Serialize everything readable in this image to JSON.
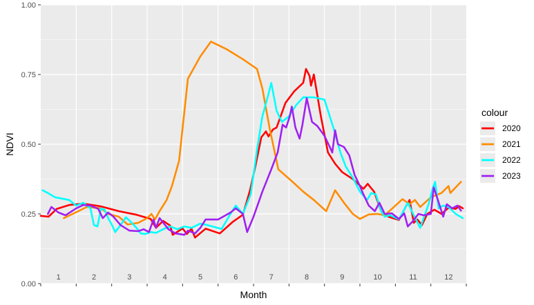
{
  "chart_data": {
    "type": "line",
    "xlabel": "Month",
    "ylabel": "NDVI",
    "xlim": [
      0.5,
      12.5
    ],
    "ylim": [
      0,
      1
    ],
    "y_ticks": [
      0.0,
      0.25,
      0.5,
      0.75,
      1.0
    ],
    "y_tick_labels": [
      "0.00",
      "0.25",
      "0.50",
      "0.75",
      "1.00"
    ],
    "x_month_labels": [
      "1",
      "2",
      "3",
      "4",
      "5",
      "6",
      "7",
      "8",
      "9",
      "10",
      "11",
      "12"
    ],
    "grid": true,
    "background": "#ebebeb",
    "legend": {
      "title": "colour",
      "position": "right"
    },
    "series": [
      {
        "name": "2020",
        "color": "#ff0000",
        "points": [
          [
            0.5,
            0.243
          ],
          [
            0.72,
            0.24
          ],
          [
            0.95,
            0.268
          ],
          [
            1.3,
            0.282
          ],
          [
            1.7,
            0.287
          ],
          [
            2.2,
            0.277
          ],
          [
            2.7,
            0.26
          ],
          [
            3.2,
            0.247
          ],
          [
            3.6,
            0.232
          ],
          [
            3.75,
            0.2
          ],
          [
            3.95,
            0.225
          ],
          [
            4.15,
            0.208
          ],
          [
            4.22,
            0.175
          ],
          [
            4.5,
            0.198
          ],
          [
            4.62,
            0.178
          ],
          [
            4.75,
            0.197
          ],
          [
            4.85,
            0.165
          ],
          [
            5.15,
            0.197
          ],
          [
            5.55,
            0.18
          ],
          [
            5.9,
            0.22
          ],
          [
            6.2,
            0.247
          ],
          [
            6.4,
            0.335
          ],
          [
            6.55,
            0.42
          ],
          [
            6.72,
            0.525
          ],
          [
            6.85,
            0.546
          ],
          [
            6.92,
            0.528
          ],
          [
            7.05,
            0.553
          ],
          [
            7.15,
            0.56
          ],
          [
            7.4,
            0.648
          ],
          [
            7.65,
            0.69
          ],
          [
            7.9,
            0.72
          ],
          [
            7.98,
            0.77
          ],
          [
            8.08,
            0.745
          ],
          [
            8.12,
            0.71
          ],
          [
            8.2,
            0.75
          ],
          [
            8.4,
            0.6
          ],
          [
            8.6,
            0.47
          ],
          [
            8.8,
            0.43
          ],
          [
            9.0,
            0.4
          ],
          [
            9.3,
            0.375
          ],
          [
            9.6,
            0.34
          ],
          [
            9.72,
            0.358
          ],
          [
            9.8,
            0.345
          ],
          [
            9.9,
            0.33
          ],
          [
            10.1,
            0.26
          ],
          [
            10.3,
            0.24
          ],
          [
            10.6,
            0.228
          ],
          [
            10.8,
            0.278
          ],
          [
            10.9,
            0.3
          ],
          [
            11.02,
            0.218
          ],
          [
            11.12,
            0.23
          ],
          [
            11.25,
            0.21
          ],
          [
            11.4,
            0.25
          ],
          [
            11.6,
            0.265
          ],
          [
            11.8,
            0.25
          ],
          [
            12.0,
            0.272
          ],
          [
            12.2,
            0.268
          ],
          [
            12.3,
            0.278
          ],
          [
            12.4,
            0.27
          ]
        ]
      },
      {
        "name": "2021",
        "color": "#ff8c00",
        "points": [
          [
            1.15,
            0.235
          ],
          [
            1.4,
            0.25
          ],
          [
            1.8,
            0.275
          ],
          [
            2.2,
            0.27
          ],
          [
            2.4,
            0.25
          ],
          [
            2.7,
            0.24
          ],
          [
            2.95,
            0.212
          ],
          [
            3.25,
            0.218
          ],
          [
            3.5,
            0.235
          ],
          [
            3.62,
            0.25
          ],
          [
            3.72,
            0.23
          ],
          [
            3.85,
            0.26
          ],
          [
            4.05,
            0.3
          ],
          [
            4.2,
            0.35
          ],
          [
            4.4,
            0.44
          ],
          [
            4.65,
            0.735
          ],
          [
            5.0,
            0.815
          ],
          [
            5.3,
            0.868
          ],
          [
            5.75,
            0.84
          ],
          [
            6.2,
            0.805
          ],
          [
            6.6,
            0.77
          ],
          [
            6.75,
            0.7
          ],
          [
            6.95,
            0.56
          ],
          [
            7.2,
            0.41
          ],
          [
            7.6,
            0.365
          ],
          [
            7.9,
            0.33
          ],
          [
            8.2,
            0.3
          ],
          [
            8.55,
            0.26
          ],
          [
            8.8,
            0.335
          ],
          [
            9.05,
            0.29
          ],
          [
            9.3,
            0.25
          ],
          [
            9.5,
            0.232
          ],
          [
            9.75,
            0.248
          ],
          [
            10.0,
            0.25
          ],
          [
            10.2,
            0.245
          ],
          [
            10.4,
            0.268
          ],
          [
            10.7,
            0.303
          ],
          [
            10.9,
            0.285
          ],
          [
            11.05,
            0.3
          ],
          [
            11.2,
            0.275
          ],
          [
            11.5,
            0.31
          ],
          [
            11.8,
            0.325
          ],
          [
            12.0,
            0.35
          ],
          [
            12.05,
            0.325
          ],
          [
            12.35,
            0.365
          ]
        ]
      },
      {
        "name": "2022",
        "color": "#00ffff",
        "points": [
          [
            0.55,
            0.335
          ],
          [
            0.7,
            0.325
          ],
          [
            0.9,
            0.31
          ],
          [
            1.3,
            0.3
          ],
          [
            1.5,
            0.28
          ],
          [
            1.7,
            0.29
          ],
          [
            1.9,
            0.27
          ],
          [
            2.0,
            0.21
          ],
          [
            2.1,
            0.205
          ],
          [
            2.2,
            0.27
          ],
          [
            2.3,
            0.265
          ],
          [
            2.42,
            0.23
          ],
          [
            2.5,
            0.212
          ],
          [
            2.6,
            0.185
          ],
          [
            2.75,
            0.21
          ],
          [
            2.9,
            0.238
          ],
          [
            3.05,
            0.22
          ],
          [
            3.2,
            0.2
          ],
          [
            3.32,
            0.18
          ],
          [
            3.45,
            0.178
          ],
          [
            3.6,
            0.185
          ],
          [
            3.75,
            0.182
          ],
          [
            4.0,
            0.198
          ],
          [
            4.15,
            0.205
          ],
          [
            4.35,
            0.195
          ],
          [
            4.55,
            0.205
          ],
          [
            4.75,
            0.2
          ],
          [
            5.0,
            0.215
          ],
          [
            5.2,
            0.21
          ],
          [
            5.6,
            0.196
          ],
          [
            5.85,
            0.25
          ],
          [
            6.0,
            0.28
          ],
          [
            6.2,
            0.25
          ],
          [
            6.42,
            0.32
          ],
          [
            6.6,
            0.48
          ],
          [
            6.75,
            0.6
          ],
          [
            6.92,
            0.68
          ],
          [
            7.0,
            0.72
          ],
          [
            7.15,
            0.62
          ],
          [
            7.3,
            0.58
          ],
          [
            7.5,
            0.6
          ],
          [
            7.7,
            0.64
          ],
          [
            7.9,
            0.668
          ],
          [
            8.2,
            0.668
          ],
          [
            8.5,
            0.66
          ],
          [
            8.75,
            0.56
          ],
          [
            8.95,
            0.47
          ],
          [
            9.1,
            0.42
          ],
          [
            9.3,
            0.38
          ],
          [
            9.5,
            0.33
          ],
          [
            9.7,
            0.3
          ],
          [
            9.82,
            0.325
          ],
          [
            9.95,
            0.32
          ],
          [
            10.1,
            0.26
          ],
          [
            10.2,
            0.24
          ],
          [
            10.35,
            0.245
          ],
          [
            10.6,
            0.23
          ],
          [
            10.85,
            0.29
          ],
          [
            11.0,
            0.25
          ],
          [
            11.2,
            0.2
          ],
          [
            11.45,
            0.29
          ],
          [
            11.55,
            0.34
          ],
          [
            11.62,
            0.365
          ],
          [
            11.72,
            0.27
          ],
          [
            11.85,
            0.28
          ],
          [
            12.0,
            0.275
          ],
          [
            12.2,
            0.25
          ],
          [
            12.4,
            0.235
          ]
        ]
      },
      {
        "name": "2023",
        "color": "#a020f0",
        "points": [
          [
            0.7,
            0.25
          ],
          [
            0.8,
            0.275
          ],
          [
            1.0,
            0.255
          ],
          [
            1.2,
            0.245
          ],
          [
            1.5,
            0.27
          ],
          [
            1.7,
            0.282
          ],
          [
            1.9,
            0.28
          ],
          [
            2.12,
            0.268
          ],
          [
            2.25,
            0.235
          ],
          [
            2.4,
            0.255
          ],
          [
            2.55,
            0.24
          ],
          [
            2.75,
            0.21
          ],
          [
            3.0,
            0.19
          ],
          [
            3.25,
            0.188
          ],
          [
            3.4,
            0.195
          ],
          [
            3.55,
            0.185
          ],
          [
            3.68,
            0.23
          ],
          [
            3.75,
            0.2
          ],
          [
            3.85,
            0.235
          ],
          [
            4.1,
            0.195
          ],
          [
            4.3,
            0.18
          ],
          [
            4.55,
            0.175
          ],
          [
            4.65,
            0.19
          ],
          [
            4.85,
            0.18
          ],
          [
            5.0,
            0.2
          ],
          [
            5.15,
            0.23
          ],
          [
            5.5,
            0.23
          ],
          [
            5.85,
            0.255
          ],
          [
            6.0,
            0.27
          ],
          [
            6.2,
            0.25
          ],
          [
            6.32,
            0.185
          ],
          [
            6.5,
            0.24
          ],
          [
            6.75,
            0.33
          ],
          [
            7.0,
            0.41
          ],
          [
            7.18,
            0.47
          ],
          [
            7.32,
            0.57
          ],
          [
            7.42,
            0.56
          ],
          [
            7.52,
            0.6
          ],
          [
            7.58,
            0.635
          ],
          [
            7.68,
            0.56
          ],
          [
            7.8,
            0.52
          ],
          [
            7.88,
            0.57
          ],
          [
            8.0,
            0.665
          ],
          [
            8.15,
            0.58
          ],
          [
            8.3,
            0.565
          ],
          [
            8.5,
            0.53
          ],
          [
            8.65,
            0.49
          ],
          [
            8.72,
            0.47
          ],
          [
            8.8,
            0.55
          ],
          [
            8.88,
            0.5
          ],
          [
            9.05,
            0.49
          ],
          [
            9.2,
            0.46
          ],
          [
            9.35,
            0.39
          ],
          [
            9.5,
            0.35
          ],
          [
            9.6,
            0.32
          ],
          [
            9.75,
            0.28
          ],
          [
            9.92,
            0.26
          ],
          [
            10.05,
            0.29
          ],
          [
            10.2,
            0.25
          ],
          [
            10.4,
            0.252
          ],
          [
            10.6,
            0.232
          ],
          [
            10.75,
            0.252
          ],
          [
            10.85,
            0.205
          ],
          [
            11.0,
            0.225
          ],
          [
            11.15,
            0.25
          ],
          [
            11.3,
            0.245
          ],
          [
            11.5,
            0.25
          ],
          [
            11.58,
            0.345
          ],
          [
            11.7,
            0.3
          ],
          [
            11.85,
            0.24
          ],
          [
            11.95,
            0.285
          ],
          [
            12.1,
            0.27
          ],
          [
            12.25,
            0.28
          ],
          [
            12.35,
            0.262
          ]
        ]
      }
    ]
  }
}
